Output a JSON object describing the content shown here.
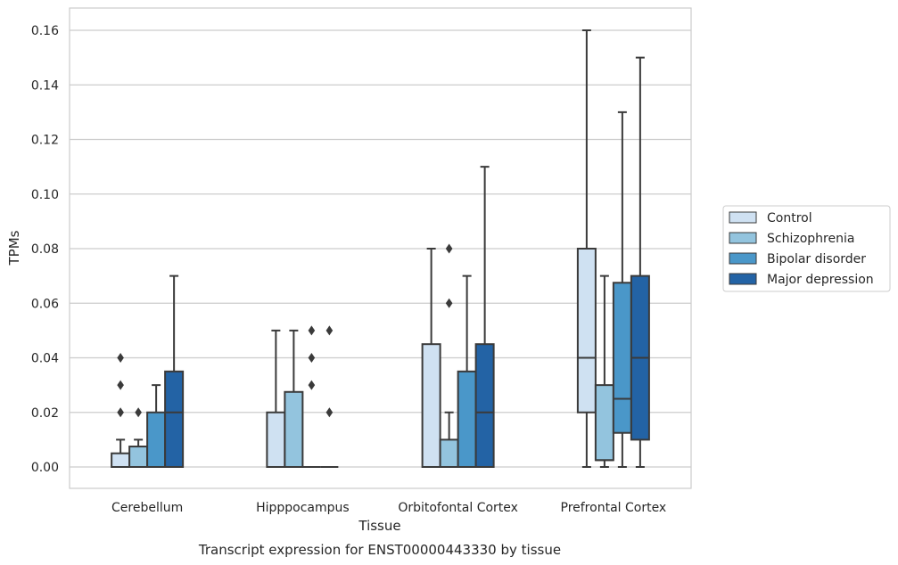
{
  "chart_data": {
    "type": "box",
    "caption": "Transcript expression for ENST00000443330 by tissue",
    "xlabel": "Tissue",
    "ylabel": "TPMs",
    "ylim": [
      -0.008,
      0.168
    ],
    "yticks": [
      "0.00",
      "0.02",
      "0.04",
      "0.06",
      "0.08",
      "0.10",
      "0.12",
      "0.14",
      "0.16"
    ],
    "grid": true,
    "legend_position": "right",
    "categories": [
      "Cerebellum",
      "Hipppocampus",
      "Orbitofontal Cortex",
      "Prefrontal Cortex"
    ],
    "series": [
      {
        "name": "Control",
        "color": "#cfe1f2",
        "boxes": [
          {
            "whisker_low": 0,
            "q1": 0,
            "median": 0,
            "q3": 0.005,
            "whisker_high": 0.01,
            "outliers": [
              0.02,
              0.03,
              0.04
            ]
          },
          {
            "whisker_low": 0,
            "q1": 0,
            "median": 0,
            "q3": 0.02,
            "whisker_high": 0.05,
            "outliers": []
          },
          {
            "whisker_low": 0,
            "q1": 0,
            "median": 0,
            "q3": 0.045,
            "whisker_high": 0.08,
            "outliers": []
          },
          {
            "whisker_low": 0,
            "q1": 0.02,
            "median": 0.04,
            "q3": 0.08,
            "whisker_high": 0.16,
            "outliers": []
          }
        ]
      },
      {
        "name": "Schizophrenia",
        "color": "#93c4de",
        "boxes": [
          {
            "whisker_low": 0,
            "q1": 0,
            "median": 0,
            "q3": 0.0075,
            "whisker_high": 0.01,
            "outliers": [
              0.02
            ]
          },
          {
            "whisker_low": 0,
            "q1": 0,
            "median": 0,
            "q3": 0.0275,
            "whisker_high": 0.05,
            "outliers": []
          },
          {
            "whisker_low": 0,
            "q1": 0,
            "median": 0,
            "q3": 0.01,
            "whisker_high": 0.02,
            "outliers": [
              0.06,
              0.08
            ]
          },
          {
            "whisker_low": 0,
            "q1": 0.0025,
            "median": 0.0025,
            "q3": 0.03,
            "whisker_high": 0.07,
            "outliers": []
          }
        ]
      },
      {
        "name": "Bipolar disorder",
        "color": "#4a97c9",
        "boxes": [
          {
            "whisker_low": 0,
            "q1": 0,
            "median": 0,
            "q3": 0.02,
            "whisker_high": 0.03,
            "outliers": []
          },
          {
            "whisker_low": 0,
            "q1": 0,
            "median": 0,
            "q3": 0,
            "whisker_high": 0,
            "outliers": [
              0.03,
              0.04,
              0.05
            ]
          },
          {
            "whisker_low": 0,
            "q1": 0,
            "median": 0,
            "q3": 0.035,
            "whisker_high": 0.07,
            "outliers": []
          },
          {
            "whisker_low": 0,
            "q1": 0.0125,
            "median": 0.025,
            "q3": 0.0675,
            "whisker_high": 0.13,
            "outliers": []
          }
        ]
      },
      {
        "name": "Major depression",
        "color": "#2363a5",
        "boxes": [
          {
            "whisker_low": 0,
            "q1": 0,
            "median": 0.02,
            "q3": 0.035,
            "whisker_high": 0.07,
            "outliers": []
          },
          {
            "whisker_low": 0,
            "q1": 0,
            "median": 0,
            "q3": 0,
            "whisker_high": 0,
            "outliers": [
              0.02,
              0.05
            ]
          },
          {
            "whisker_low": 0,
            "q1": 0,
            "median": 0.02,
            "q3": 0.045,
            "whisker_high": 0.11,
            "outliers": []
          },
          {
            "whisker_low": 0,
            "q1": 0.01,
            "median": 0.04,
            "q3": 0.07,
            "whisker_high": 0.15,
            "outliers": []
          }
        ]
      }
    ]
  }
}
